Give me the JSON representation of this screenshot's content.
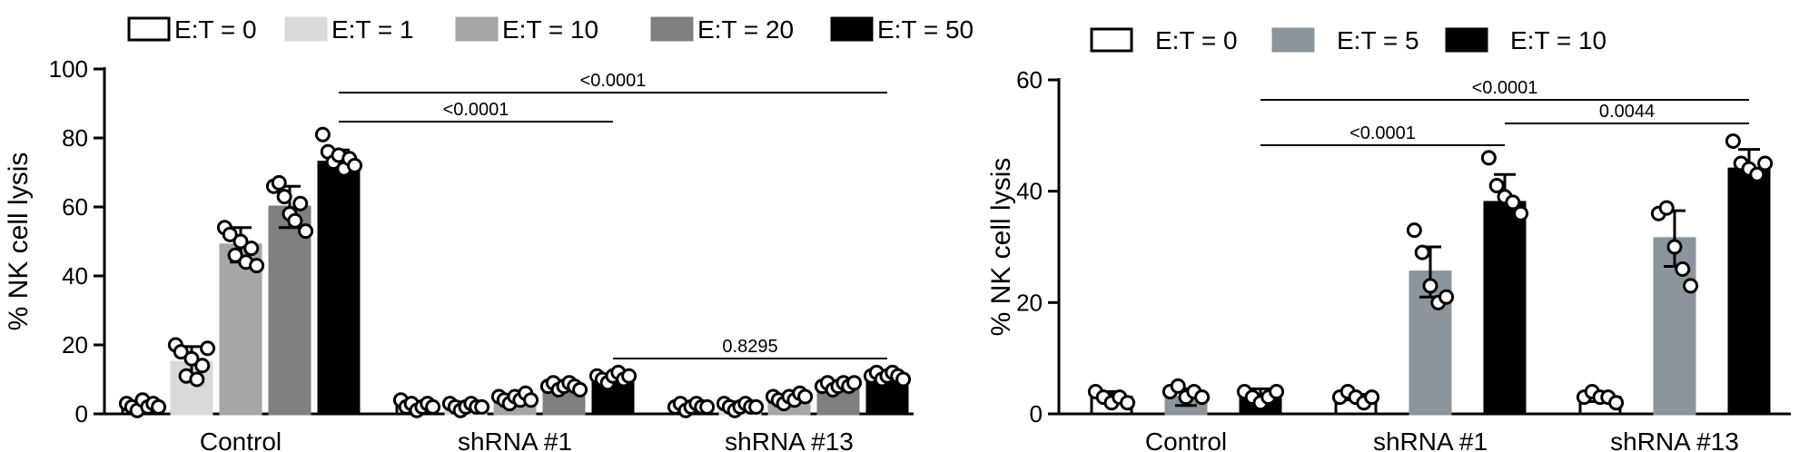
{
  "chart_data": [
    {
      "type": "bar",
      "ylabel": "% NK cell lysis",
      "ylim": [
        0,
        100
      ],
      "yticks": [
        0,
        20,
        40,
        60,
        80,
        100
      ],
      "categories": [
        "Control",
        "shRNA #1",
        "shRNA #13"
      ],
      "legend_position": "top",
      "series": [
        {
          "name": "E:T = 0",
          "color": "#ffffff",
          "values": [
            2.5,
            2.5,
            2.5
          ],
          "errors": [
            1.0,
            1.0,
            1.0
          ]
        },
        {
          "name": "E:T = 1",
          "color": "#d9d9d9",
          "values": [
            15,
            2.5,
            2.5
          ],
          "errors": [
            4.5,
            1.0,
            1.0
          ]
        },
        {
          "name": "E:T = 10",
          "color": "#a6a6a6",
          "values": [
            49,
            4.5,
            4.5
          ],
          "errors": [
            5.0,
            1.0,
            1.0
          ]
        },
        {
          "name": "E:T = 20",
          "color": "#7f7f7f",
          "values": [
            60,
            8,
            8
          ],
          "errors": [
            6.0,
            1.0,
            1.0
          ]
        },
        {
          "name": "E:T = 50",
          "color": "#000000",
          "values": [
            73,
            10.5,
            11
          ],
          "errors": [
            3.5,
            1.0,
            1.0
          ]
        }
      ],
      "points": [
        [
          [
            3,
            2,
            1,
            4,
            2,
            3,
            2
          ],
          [
            4,
            2,
            3,
            1,
            2,
            3,
            2
          ],
          [
            2,
            3,
            1,
            2,
            3,
            2,
            2
          ]
        ],
        [
          [
            20,
            18,
            11,
            16,
            10,
            14,
            19
          ],
          [
            3,
            2,
            1,
            2,
            3,
            2,
            2
          ],
          [
            3,
            2,
            1,
            2,
            3,
            2,
            2
          ]
        ],
        [
          [
            54,
            52,
            46,
            50,
            44,
            48,
            43
          ],
          [
            5,
            4,
            3,
            5,
            4,
            6,
            4
          ],
          [
            5,
            4,
            3,
            5,
            4,
            6,
            5
          ]
        ],
        [
          [
            66,
            67,
            63,
            58,
            56,
            61,
            53
          ],
          [
            8,
            9,
            7,
            8,
            9,
            8,
            7
          ],
          [
            8,
            9,
            7,
            8,
            9,
            8,
            9
          ]
        ],
        [
          [
            81,
            76,
            73,
            75,
            71,
            74,
            72
          ],
          [
            11,
            10,
            9,
            11,
            12,
            10,
            11
          ],
          [
            11,
            12,
            10,
            11,
            12,
            11,
            10
          ]
        ]
      ],
      "significance": [
        {
          "label": "<0.0001",
          "from": [
            0,
            4
          ],
          "to": [
            1,
            4
          ]
        },
        {
          "label": "<0.0001",
          "from": [
            0,
            4
          ],
          "to": [
            2,
            4
          ]
        },
        {
          "label": "0.8295",
          "from": [
            1,
            4
          ],
          "to": [
            2,
            4
          ]
        }
      ]
    },
    {
      "type": "bar",
      "ylabel": "% NK cell lysis",
      "ylim": [
        0,
        60
      ],
      "yticks": [
        0,
        20,
        40,
        60
      ],
      "categories": [
        "Control",
        "shRNA #1",
        "shRNA #13"
      ],
      "legend_position": "top",
      "series": [
        {
          "name": "E:T = 0",
          "color": "#ffffff",
          "values": [
            3,
            3,
            3
          ],
          "errors": [
            1.0,
            0.5,
            0.8
          ]
        },
        {
          "name": "E:T = 5",
          "color": "#8c959c",
          "values": [
            3,
            25.5,
            31.5
          ],
          "errors": [
            1.5,
            4.5,
            5.0
          ]
        },
        {
          "name": "E:T = 10",
          "color": "#000000",
          "values": [
            3,
            38,
            44
          ],
          "errors": [
            1.5,
            5.0,
            3.5
          ]
        }
      ],
      "points": [
        [
          [
            4,
            3,
            2,
            3,
            2
          ],
          [
            3,
            4,
            3,
            2,
            3
          ],
          [
            3,
            4,
            3,
            3,
            2
          ]
        ],
        [
          [
            4,
            5,
            3,
            4,
            3
          ],
          [
            33,
            29,
            23,
            20,
            21
          ],
          [
            36,
            37,
            30,
            26,
            23
          ]
        ],
        [
          [
            4,
            3,
            2,
            3,
            4
          ],
          [
            46,
            41,
            39,
            38,
            36
          ],
          [
            49,
            45,
            44,
            43,
            45
          ]
        ]
      ],
      "significance": [
        {
          "label": "<0.0001",
          "from": [
            0,
            2
          ],
          "to": [
            1,
            2
          ]
        },
        {
          "label": "<0.0001",
          "from": [
            0,
            2
          ],
          "to": [
            2,
            2
          ]
        },
        {
          "label": "0.0044",
          "from": [
            1,
            2
          ],
          "to": [
            2,
            2
          ]
        }
      ]
    }
  ]
}
